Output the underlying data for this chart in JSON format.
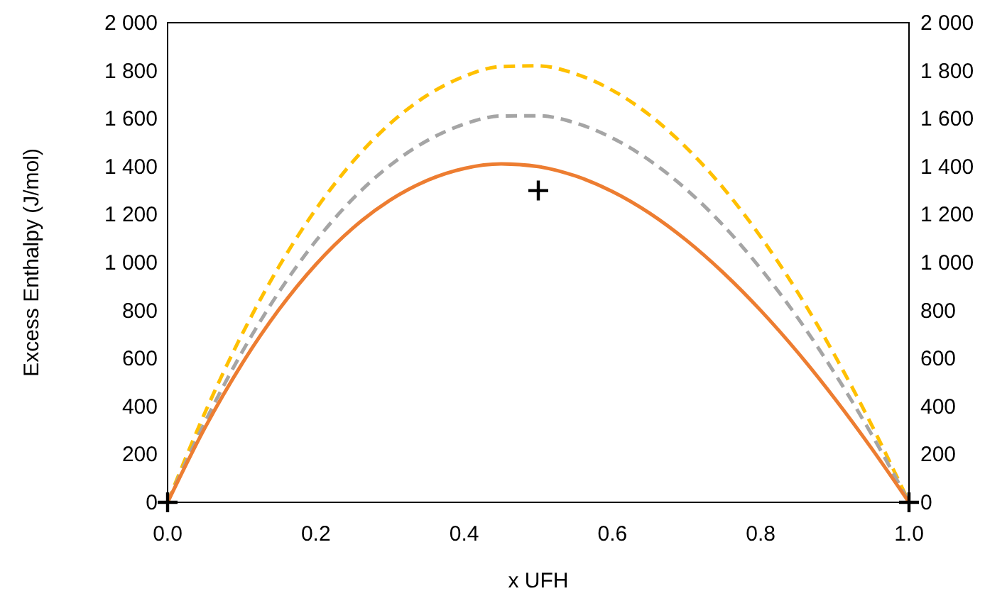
{
  "chart_data": {
    "type": "line",
    "xlabel": "x UFH",
    "ylabel": "Excess Enthalpy (J/mol)",
    "xlim": [
      0,
      1
    ],
    "xticks": [
      {
        "value": 0,
        "label": "0.0"
      },
      {
        "value": 0.2,
        "label": "0.2"
      },
      {
        "value": 0.4,
        "label": "0.4"
      },
      {
        "value": 0.6,
        "label": "0.6"
      },
      {
        "value": 0.8,
        "label": "0.8"
      },
      {
        "value": 1,
        "label": "1.0"
      }
    ],
    "ylim": [
      0,
      2000
    ],
    "yticks": [
      0,
      200,
      400,
      600,
      800,
      {
        "value": 1000,
        "label": "1 000"
      },
      {
        "value": 1200,
        "label": "1 200"
      },
      {
        "value": 1400,
        "label": "1 400"
      },
      {
        "value": 1600,
        "label": "1 600"
      },
      {
        "value": 1800,
        "label": "1 800"
      },
      {
        "value": 2000,
        "label": "2 000"
      }
    ],
    "y2lim": [
      0,
      2000
    ],
    "y2ticks": [
      0,
      200,
      400,
      600,
      800,
      {
        "value": 1000,
        "label": "1 000"
      },
      {
        "value": 1200,
        "label": "1 200"
      },
      {
        "value": 1400,
        "label": "1 400"
      },
      {
        "value": 1600,
        "label": "1 600"
      },
      {
        "value": 1800,
        "label": "1 800"
      },
      {
        "value": 2000,
        "label": "2 000"
      }
    ],
    "x": [
      0,
      0.05,
      0.1,
      0.15,
      0.2,
      0.25,
      0.3,
      0.35,
      0.4,
      0.45,
      0.5,
      0.55,
      0.6,
      0.65,
      0.7,
      0.75,
      0.8,
      0.85,
      0.9,
      0.95,
      1
    ],
    "grid": false,
    "series": [
      {
        "color": "#ffc000",
        "line_style": "dashed",
        "marker": "none",
        "values": [
          0,
          371,
          698,
          982,
          1222,
          1421,
          1579,
          1697,
          1776,
          1817,
          1820,
          1787,
          1718,
          1615,
          1478,
          1309,
          1107,
          875,
          612,
          320,
          0
        ]
      },
      {
        "color": "#a5a5a5",
        "line_style": "dashed",
        "marker": "none",
        "values": [
          0,
          332,
          624,
          876,
          1090,
          1266,
          1405,
          1508,
          1577,
          1611,
          1612,
          1582,
          1519,
          1426,
          1304,
          1153,
          974,
          769,
          537,
          281,
          0
        ]
      },
      {
        "color": "#ed7d31",
        "line_style": "solid",
        "marker": "none",
        "values": [
          0,
          309,
          576,
          803,
          992,
          1144,
          1260,
          1342,
          1392,
          1411,
          1400,
          1361,
          1296,
          1206,
          1092,
          956,
          800,
          625,
          432,
          223,
          0
        ]
      },
      {
        "type": "scatter",
        "color": "#000000",
        "marker": "cross",
        "x": [
          0,
          0.5,
          1
        ],
        "values": [
          0,
          1300,
          0
        ]
      }
    ]
  }
}
